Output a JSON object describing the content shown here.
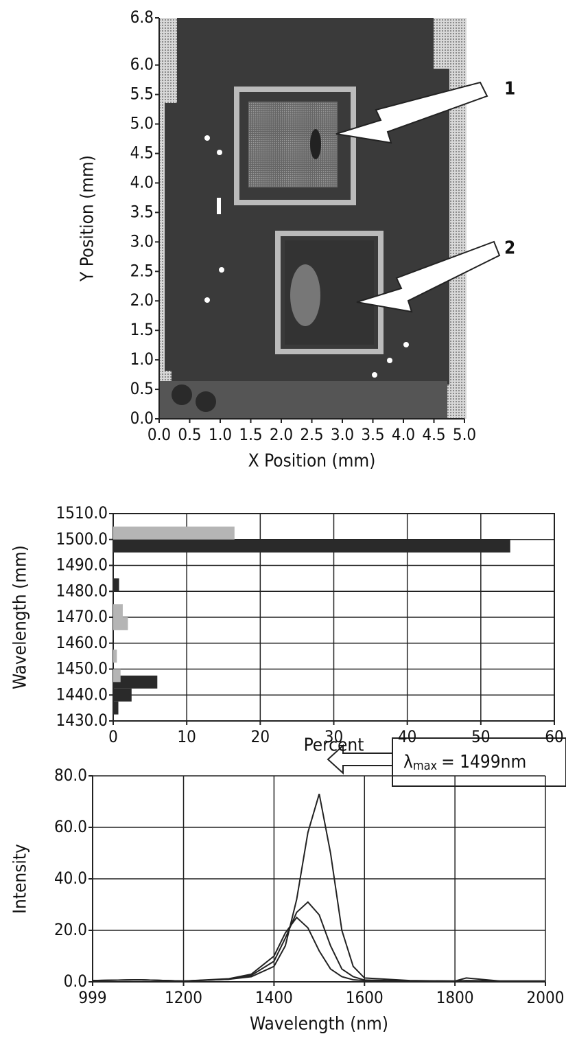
{
  "chart_data": [
    {
      "type": "image",
      "x_label": "X Position (mm)",
      "y_label": "Y Position (mm)",
      "xlim": [
        0,
        5
      ],
      "ylim": [
        0,
        6.8
      ],
      "xticks": [
        {
          "value": 0,
          "label": "0.0"
        },
        {
          "value": 0.5,
          "label": "0.5"
        },
        {
          "value": 1,
          "label": "1.0"
        },
        {
          "value": 1.5,
          "label": "1.5"
        },
        {
          "value": 2,
          "label": "2.0"
        },
        {
          "value": 2.5,
          "label": "2.5"
        },
        {
          "value": 3,
          "label": "3.0"
        },
        {
          "value": 3.5,
          "label": "3.5"
        },
        {
          "value": 4,
          "label": "4.0"
        },
        {
          "value": 4.5,
          "label": "4.5"
        },
        {
          "value": 5,
          "label": "5.0"
        }
      ],
      "yticks": [
        {
          "value": 0,
          "label": "0.0"
        },
        {
          "value": 0.5,
          "label": "0.5"
        },
        {
          "value": 1,
          "label": "1.0"
        },
        {
          "value": 1.5,
          "label": "1.5"
        },
        {
          "value": 2,
          "label": "2.0"
        },
        {
          "value": 2.5,
          "label": "2.5"
        },
        {
          "value": 3,
          "label": "3.0"
        },
        {
          "value": 3.5,
          "label": "3.5"
        },
        {
          "value": 4,
          "label": "4.0"
        },
        {
          "value": 4.5,
          "label": "4.5"
        },
        {
          "value": 5,
          "label": "5.0"
        },
        {
          "value": 5.5,
          "label": "5.5"
        },
        {
          "value": 6,
          "label": "6.0"
        },
        {
          "value": 6.8,
          "label": "6.8"
        }
      ],
      "annotations": [
        "1",
        "2"
      ]
    },
    {
      "type": "barh",
      "x_label": "Percent",
      "y_label": "Wavelength (mm)",
      "xlim": [
        0,
        60
      ],
      "ylim": [
        1430,
        1510
      ],
      "xticks": [
        0,
        10,
        20,
        30,
        40,
        50,
        60
      ],
      "yticks": [
        {
          "value": 1430,
          "label": "1430.0"
        },
        {
          "value": 1440,
          "label": "1440.0"
        },
        {
          "value": 1450,
          "label": "1450.0"
        },
        {
          "value": 1460,
          "label": "1460.0"
        },
        {
          "value": 1470,
          "label": "1470.0"
        },
        {
          "value": 1480,
          "label": "1480.0"
        },
        {
          "value": 1490,
          "label": "1490.0"
        },
        {
          "value": 1500,
          "label": "1500.0"
        },
        {
          "value": 1510,
          "label": "1510.0"
        }
      ],
      "grid": true,
      "series": [
        {
          "color": "#2a2a2a",
          "y": [
            1435,
            1440,
            1445,
            1482.5,
            1497.5
          ],
          "values": [
            0.7,
            2.5,
            6,
            0.8,
            54
          ]
        },
        {
          "color": "#b5b5b5",
          "y": [
            1447.5,
            1455,
            1467.5,
            1472.5,
            1502.5
          ],
          "values": [
            1,
            0.5,
            2,
            1.3,
            16.5
          ]
        }
      ]
    },
    {
      "type": "line",
      "x_label": "Wavelength (nm)",
      "y_label": "Intensity",
      "xlim": [
        999,
        2000
      ],
      "ylim": [
        0,
        80
      ],
      "xticks": [
        999,
        1200,
        1400,
        1600,
        1800,
        2000
      ],
      "yticks": [
        {
          "value": 0,
          "label": "0.0"
        },
        {
          "value": 20,
          "label": "20.0"
        },
        {
          "value": 40,
          "label": "40.0"
        },
        {
          "value": 60,
          "label": "60.0"
        },
        {
          "value": 80,
          "label": "80.0"
        }
      ],
      "grid": true,
      "x": [
        999,
        1100,
        1200,
        1300,
        1350,
        1400,
        1425,
        1450,
        1475,
        1500,
        1525,
        1550,
        1575,
        1600,
        1700,
        1800,
        1825,
        1900,
        2000
      ],
      "series": [
        {
          "color": "#222",
          "values": [
            0.5,
            0.8,
            0.3,
            1,
            2,
            6,
            14,
            32,
            58,
            73,
            50,
            20,
            6,
            1.5,
            0.5,
            0.3,
            1.5,
            0.3,
            0.3
          ]
        },
        {
          "color": "#222",
          "values": [
            0.5,
            0.8,
            0.3,
            1,
            2.5,
            8,
            17,
            27,
            31,
            26,
            14,
            5,
            2,
            0.7,
            0.3,
            0.3,
            0.5,
            0.3,
            0.3
          ]
        },
        {
          "color": "#222",
          "values": [
            0.5,
            0.8,
            0.3,
            1.2,
            3,
            10,
            19,
            25,
            21,
            12,
            5,
            2,
            0.8,
            0.5,
            0.3,
            0.3,
            0.3,
            0.3,
            0.3
          ]
        }
      ],
      "annotation": {
        "symbol": "λ",
        "subscript": "max",
        "text": "= 1499nm"
      }
    }
  ]
}
